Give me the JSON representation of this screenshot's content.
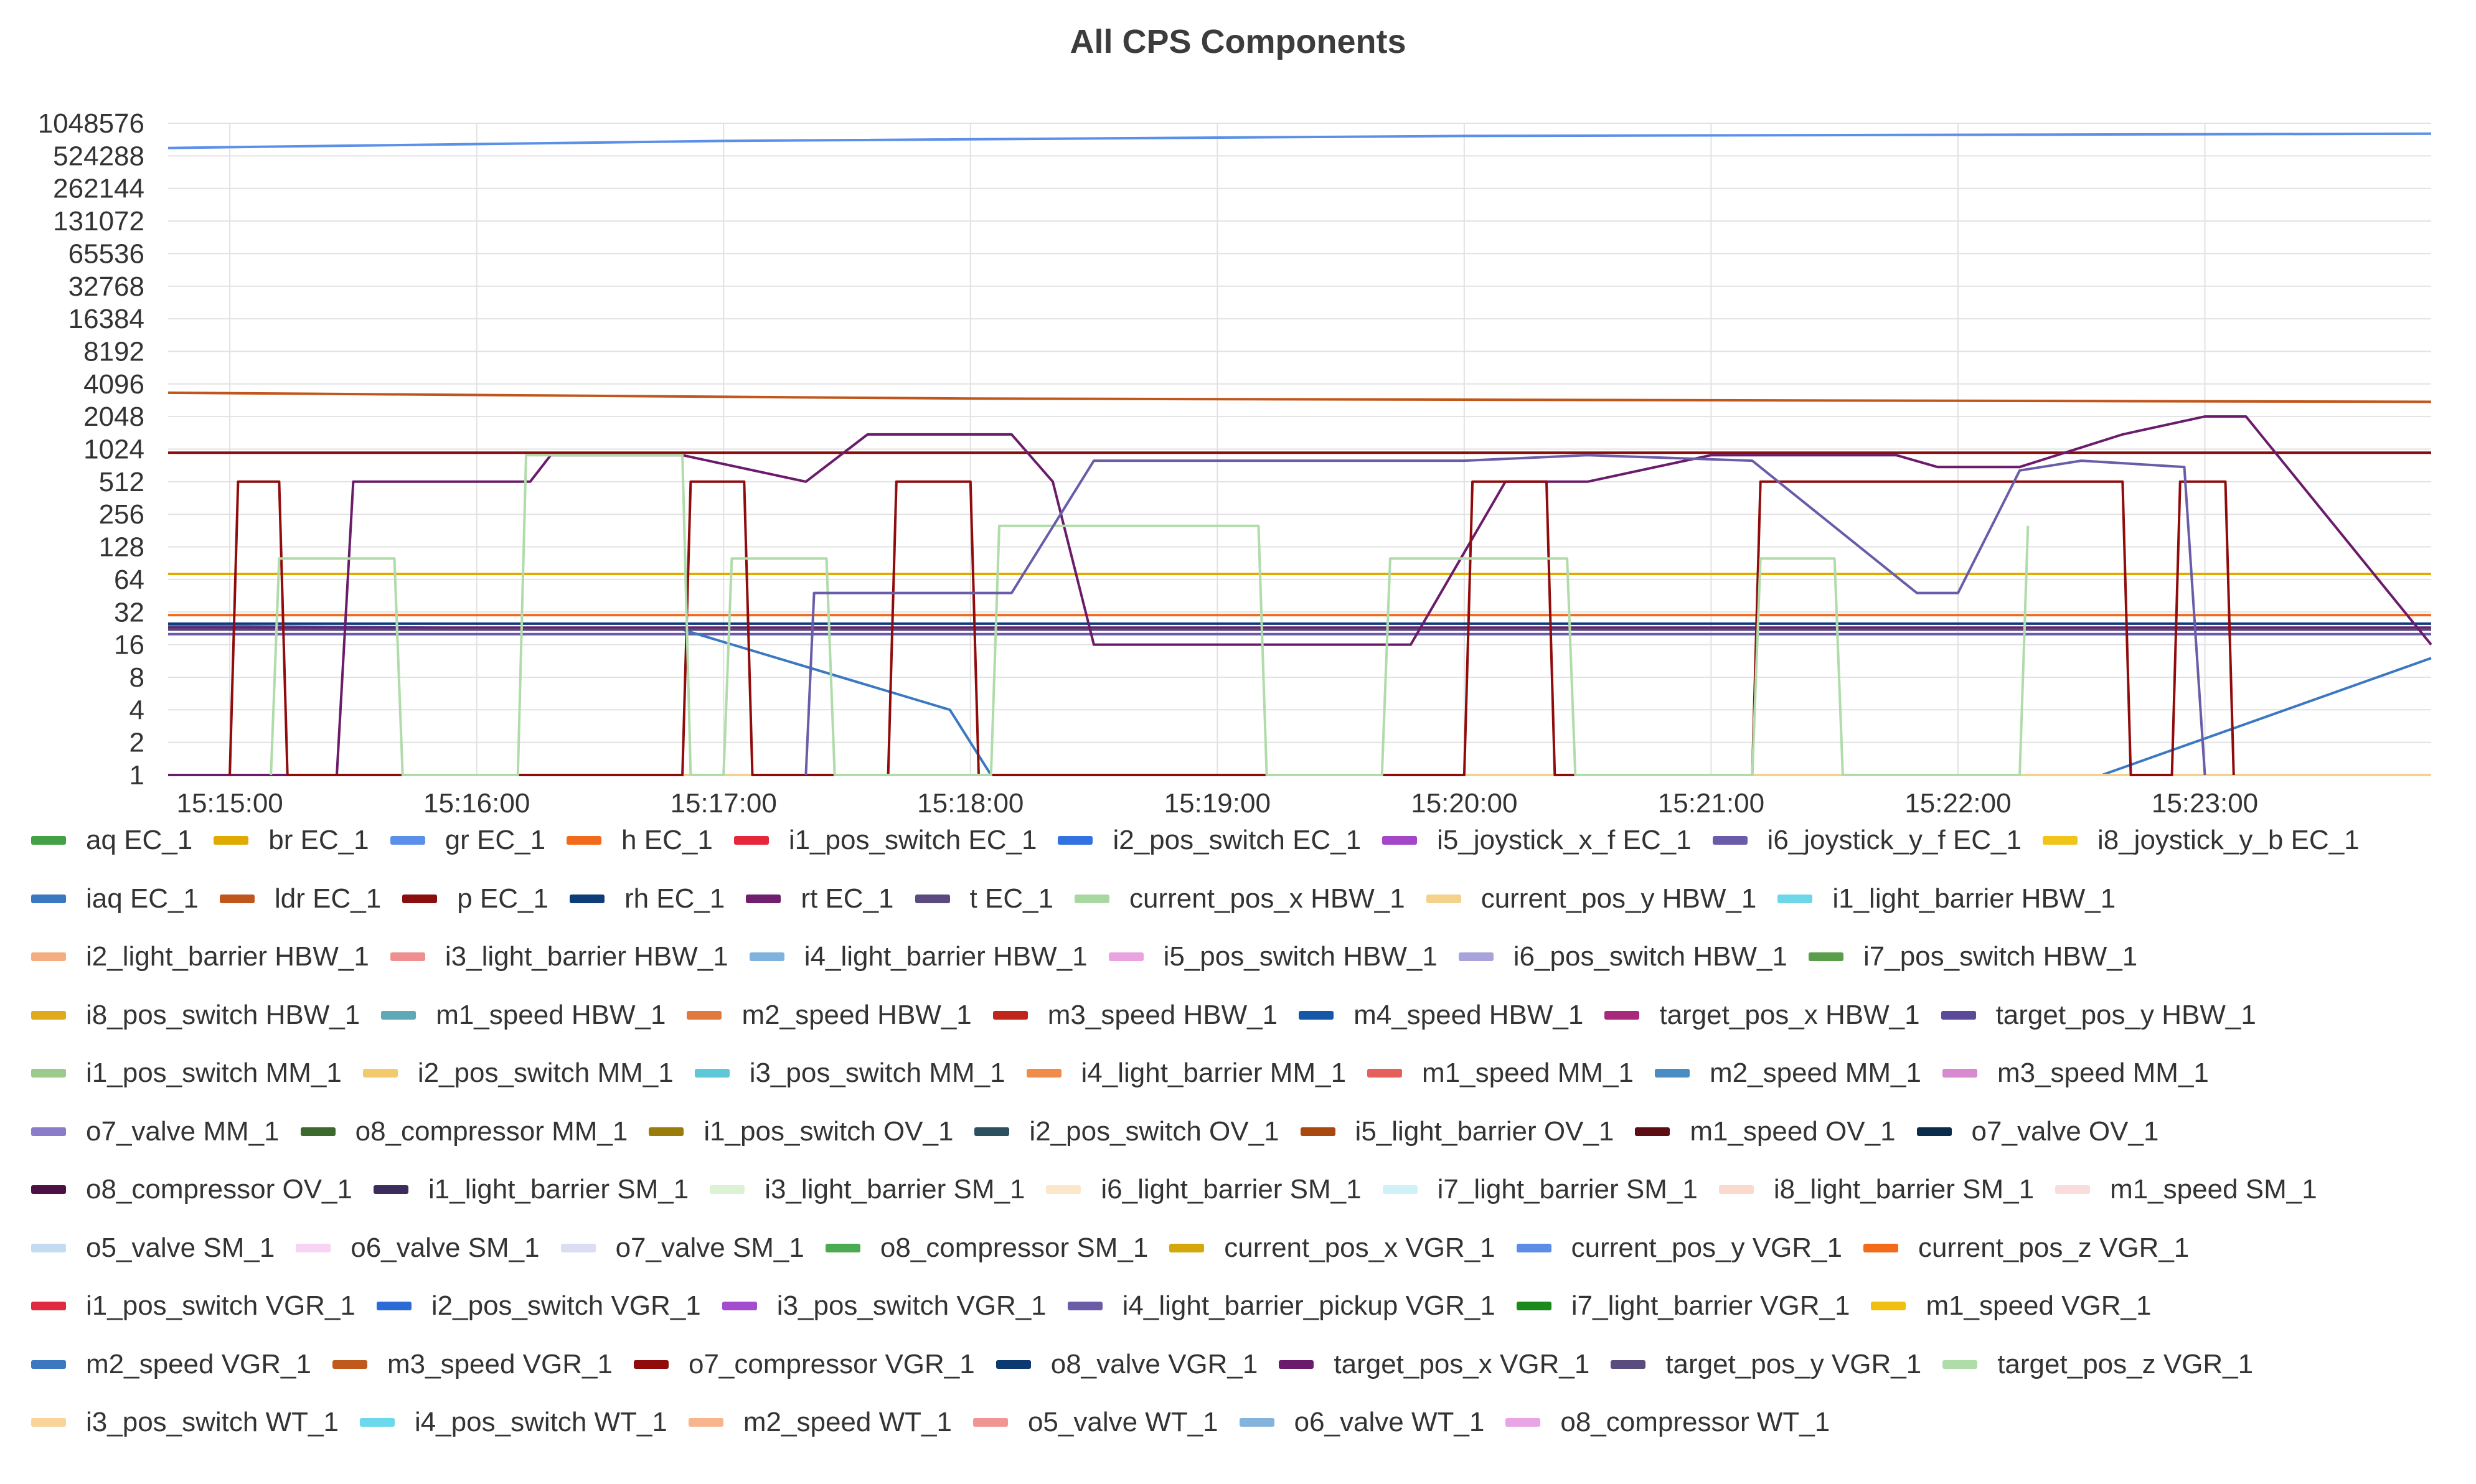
{
  "chart_data": {
    "type": "line",
    "title": "All CPS Components",
    "xlabel": "",
    "ylabel": "",
    "y_scale": "log2",
    "y_ticks": [
      "1",
      "2",
      "4",
      "8",
      "16",
      "32",
      "64",
      "128",
      "256",
      "512",
      "1024",
      "2048",
      "4096",
      "8192",
      "16384",
      "32768",
      "65536",
      "131072",
      "262144",
      "524288",
      "1048576"
    ],
    "y_tick_values": [
      1,
      2,
      4,
      8,
      16,
      32,
      64,
      128,
      256,
      512,
      1024,
      2048,
      4096,
      8192,
      16384,
      32768,
      65536,
      131072,
      262144,
      524288,
      1048576
    ],
    "x_range": [
      "15:14:45",
      "15:23:55"
    ],
    "x_ticks": [
      "15:15:00",
      "15:16:00",
      "15:17:00",
      "15:18:00",
      "15:19:00",
      "15:20:00",
      "15:21:00",
      "15:22:00",
      "15:23:00"
    ],
    "grid": true,
    "legend_position": "bottom",
    "series": [
      {
        "name": "aq EC_1",
        "color": "#43a047",
        "x": [
          "15:14:45",
          "15:23:55"
        ],
        "y": [
          1,
          1
        ]
      },
      {
        "name": "br EC_1",
        "color": "#e0aa00",
        "x": [
          "15:14:45",
          "15:23:55"
        ],
        "y": [
          72,
          72
        ]
      },
      {
        "name": "gr EC_1",
        "color": "#5b8fe8",
        "x": [
          "15:14:45",
          "15:17:00",
          "15:20:00",
          "15:23:55"
        ],
        "y": [
          620000,
          720000,
          800000,
          840000
        ]
      },
      {
        "name": "h EC_1",
        "color": "#f26b1d",
        "x": [
          "15:14:45",
          "15:23:55"
        ],
        "y": [
          30,
          30
        ]
      },
      {
        "name": "i1_pos_switch EC_1",
        "color": "#e5263b",
        "x": [
          "15:14:45",
          "15:23:55"
        ],
        "y": [
          1,
          1
        ]
      },
      {
        "name": "i2_pos_switch EC_1",
        "color": "#3172e0",
        "x": [
          "15:14:45",
          "15:23:55"
        ],
        "y": [
          1,
          1
        ]
      },
      {
        "name": "i5_joystick_x_f EC_1",
        "color": "#a346c8",
        "x": [
          "15:14:45",
          "15:23:55"
        ],
        "y": [
          1,
          1
        ]
      },
      {
        "name": "i6_joystick_y_f EC_1",
        "color": "#6a5ca8",
        "x": [
          "15:14:45",
          "15:16:50",
          "15:23:55"
        ],
        "y": [
          20,
          20,
          20
        ]
      },
      {
        "name": "i8_joystick_y_b EC_1",
        "color": "#f0c419",
        "x": [
          "15:14:45",
          "15:23:55"
        ],
        "y": [
          1,
          1
        ]
      },
      {
        "name": "iaq EC_1",
        "color": "#3b78c2",
        "x": [
          "15:14:45",
          "15:16:50",
          "15:17:55",
          "15:18:05",
          "15:22:35",
          "15:23:55"
        ],
        "y": [
          24,
          22,
          4,
          1,
          1,
          12
        ]
      },
      {
        "name": "ldr EC_1",
        "color": "#c0561c",
        "x": [
          "15:14:45",
          "15:18:00",
          "15:23:55"
        ],
        "y": [
          3400,
          3000,
          2800
        ]
      },
      {
        "name": "p EC_1",
        "color": "#8b0e0e",
        "x": [
          "15:14:45",
          "15:23:55"
        ],
        "y": [
          950,
          950
        ]
      },
      {
        "name": "rh EC_1",
        "color": "#0d3c78",
        "x": [
          "15:14:45",
          "15:23:55"
        ],
        "y": [
          25,
          25
        ]
      },
      {
        "name": "rt EC_1",
        "color": "#6e1f6e",
        "x": [
          "15:14:45",
          "15:23:55"
        ],
        "y": [
          23,
          23
        ]
      },
      {
        "name": "t EC_1",
        "color": "#5a4a80",
        "x": [
          "15:14:45",
          "15:23:55"
        ],
        "y": [
          22,
          22
        ]
      },
      {
        "name": "current_pos_x HBW_1",
        "color": "#a8d8a0",
        "x": [
          "15:14:45",
          "15:23:55"
        ],
        "y": [
          1,
          1
        ]
      },
      {
        "name": "current_pos_y HBW_1",
        "color": "#f5d28c",
        "x": [
          "15:14:45",
          "15:23:55"
        ],
        "y": [
          1,
          1
        ]
      },
      {
        "name": "i1_light_barrier HBW_1",
        "color": "#6dd6e8"
      },
      {
        "name": "i2_light_barrier HBW_1",
        "color": "#f4ad80"
      },
      {
        "name": "i3_light_barrier HBW_1",
        "color": "#ef8f8f"
      },
      {
        "name": "i4_light_barrier HBW_1",
        "color": "#7fb2dc"
      },
      {
        "name": "i5_pos_switch HBW_1",
        "color": "#e9a3e0"
      },
      {
        "name": "i6_pos_switch HBW_1",
        "color": "#a9a3dc"
      },
      {
        "name": "i7_pos_switch HBW_1",
        "color": "#5a9e4c"
      },
      {
        "name": "i8_pos_switch HBW_1",
        "color": "#e0aa1a"
      },
      {
        "name": "m1_speed HBW_1",
        "color": "#5fa8b8"
      },
      {
        "name": "m2_speed HBW_1",
        "color": "#e07a3c"
      },
      {
        "name": "m3_speed HBW_1",
        "color": "#c0261c"
      },
      {
        "name": "m4_speed HBW_1",
        "color": "#1558a8"
      },
      {
        "name": "target_pos_x HBW_1",
        "color": "#a8287c"
      },
      {
        "name": "target_pos_y HBW_1",
        "color": "#5a4a98"
      },
      {
        "name": "i1_pos_switch MM_1",
        "color": "#9cc98c"
      },
      {
        "name": "i2_pos_switch MM_1",
        "color": "#f2c96b"
      },
      {
        "name": "i3_pos_switch MM_1",
        "color": "#5fc8d8"
      },
      {
        "name": "i4_light_barrier MM_1",
        "color": "#f08c4a"
      },
      {
        "name": "m1_speed MM_1",
        "color": "#e5605a"
      },
      {
        "name": "m2_speed MM_1",
        "color": "#4a8cc4"
      },
      {
        "name": "m3_speed MM_1",
        "color": "#d88ad0"
      },
      {
        "name": "o7_valve MM_1",
        "color": "#8a7cc8"
      },
      {
        "name": "o8_compressor MM_1",
        "color": "#3c6a2c"
      },
      {
        "name": "i1_pos_switch OV_1",
        "color": "#9a7c0c"
      },
      {
        "name": "i2_pos_switch OV_1",
        "color": "#2c5060"
      },
      {
        "name": "i5_light_barrier OV_1",
        "color": "#a84a10"
      },
      {
        "name": "m1_speed OV_1",
        "color": "#5c0e14"
      },
      {
        "name": "o7_valve OV_1",
        "color": "#0c2c4c"
      },
      {
        "name": "o8_compressor OV_1",
        "color": "#4c1044"
      },
      {
        "name": "i1_light_barrier SM_1",
        "color": "#3c2c5c"
      },
      {
        "name": "i3_light_barrier SM_1",
        "color": "#dcf2d4"
      },
      {
        "name": "i6_light_barrier SM_1",
        "color": "#fbe8cc"
      },
      {
        "name": "i7_light_barrier SM_1",
        "color": "#cff2f8"
      },
      {
        "name": "i8_light_barrier SM_1",
        "color": "#fbd9cc"
      },
      {
        "name": "m1_speed SM_1",
        "color": "#fbdcdc"
      },
      {
        "name": "o5_valve SM_1",
        "color": "#c4dcf2"
      },
      {
        "name": "o6_valve SM_1",
        "color": "#f8d4f4"
      },
      {
        "name": "o7_valve SM_1",
        "color": "#dcdcf2"
      },
      {
        "name": "o8_compressor SM_1",
        "color": "#4caa50"
      },
      {
        "name": "current_pos_x VGR_1",
        "color": "#d4a80a"
      },
      {
        "name": "current_pos_y VGR_1",
        "color": "#5c8ce8"
      },
      {
        "name": "current_pos_z VGR_1",
        "color": "#f26a1a"
      },
      {
        "name": "i1_pos_switch VGR_1",
        "color": "#e02a40"
      },
      {
        "name": "i2_pos_switch VGR_1",
        "color": "#2c6ad8"
      },
      {
        "name": "i3_pos_switch VGR_1",
        "color": "#a44cd0"
      },
      {
        "name": "i4_light_barrier_pickup VGR_1",
        "color": "#6c5ca8"
      },
      {
        "name": "i7_light_barrier VGR_1",
        "color": "#1a8a1a"
      },
      {
        "name": "m1_speed VGR_1",
        "color": "#f0c010"
      },
      {
        "name": "m2_speed VGR_1",
        "color": "#3c78c0"
      },
      {
        "name": "m3_speed VGR_1",
        "color": "#c05a1c"
      },
      {
        "name": "o7_compressor VGR_1",
        "color": "#900c0c"
      },
      {
        "name": "o8_valve VGR_1",
        "color": "#0c3a70"
      },
      {
        "name": "target_pos_x VGR_1",
        "color": "#6a1c6a"
      },
      {
        "name": "target_pos_y VGR_1",
        "color": "#5a4c7c"
      },
      {
        "name": "target_pos_z VGR_1",
        "color": "#b0dcaa"
      },
      {
        "name": "i3_pos_switch WT_1",
        "color": "#f8d49a"
      },
      {
        "name": "i4_pos_switch WT_1",
        "color": "#6cd8ec"
      },
      {
        "name": "m2_speed WT_1",
        "color": "#f8b48c"
      },
      {
        "name": "o5_valve WT_1",
        "color": "#f09494"
      },
      {
        "name": "o6_valve WT_1",
        "color": "#84b4dc"
      },
      {
        "name": "o8_compressor WT_1",
        "color": "#e8a4e4"
      }
    ],
    "pulses": [
      {
        "series": "target_pos_x VGR_1",
        "color": "#6a1c6a",
        "x": [
          "15:14:45",
          "15:15:26",
          "15:15:30",
          "15:16:13",
          "15:16:18",
          "15:16:50",
          "15:17:20",
          "15:17:35",
          "15:18:10",
          "15:18:20",
          "15:18:30",
          "15:19:47",
          "15:20:10",
          "15:20:30",
          "15:21:00",
          "15:21:45",
          "15:21:55",
          "15:22:15",
          "15:22:40",
          "15:23:00",
          "15:23:10",
          "15:23:55"
        ],
        "y": [
          1,
          1,
          512,
          512,
          900,
          900,
          512,
          1400,
          1400,
          512,
          16,
          16,
          512,
          512,
          900,
          900,
          700,
          700,
          1400,
          2048,
          2048,
          16
        ]
      },
      {
        "series": "o7_compressor VGR_1",
        "color": "#900c0c",
        "x": [
          "15:15:00",
          "15:15:02",
          "15:15:12",
          "15:15:14",
          "15:16:50",
          "15:16:52",
          "15:17:05",
          "15:17:07",
          "15:17:40",
          "15:17:42",
          "15:18:00",
          "15:18:02",
          "15:20:00",
          "15:20:02",
          "15:20:20",
          "15:20:22",
          "15:21:10",
          "15:21:12",
          "15:22:40",
          "15:22:42",
          "15:22:52",
          "15:22:54",
          "15:23:05",
          "15:23:07"
        ],
        "y": [
          1,
          512,
          512,
          1,
          1,
          512,
          512,
          1,
          1,
          512,
          512,
          1,
          1,
          512,
          512,
          1,
          1,
          512,
          512,
          1,
          1,
          512,
          512,
          1
        ]
      },
      {
        "series": "target_pos_z VGR_1",
        "color": "#b0dcaa",
        "x": [
          "15:15:10",
          "15:15:12",
          "15:15:40",
          "15:15:42",
          "15:16:10",
          "15:16:12",
          "15:16:50",
          "15:16:52",
          "15:17:00",
          "15:17:02",
          "15:17:25",
          "15:17:27",
          "15:18:05",
          "15:18:07",
          "15:19:10",
          "15:19:12",
          "15:19:40",
          "15:19:42",
          "15:20:25",
          "15:20:27",
          "15:21:10",
          "15:21:12",
          "15:21:30",
          "15:21:32",
          "15:22:15",
          "15:22:17"
        ],
        "y": [
          1,
          100,
          100,
          1,
          1,
          900,
          900,
          1,
          1,
          100,
          100,
          1,
          1,
          200,
          200,
          1,
          1,
          100,
          100,
          1,
          1,
          100,
          100,
          1,
          1,
          200
        ]
      },
      {
        "series": "i6_joystick_y_f EC_1",
        "color": "#6a5ca8",
        "x": [
          "15:17:20",
          "15:17:22",
          "15:17:45",
          "15:18:10",
          "15:18:30",
          "15:19:00",
          "15:20:00",
          "15:20:30",
          "15:21:10",
          "15:21:50",
          "15:22:00",
          "15:22:15",
          "15:22:30",
          "15:22:55",
          "15:23:00"
        ],
        "y": [
          1,
          48,
          48,
          48,
          800,
          800,
          800,
          900,
          800,
          48,
          48,
          650,
          800,
          700,
          1
        ]
      }
    ]
  }
}
